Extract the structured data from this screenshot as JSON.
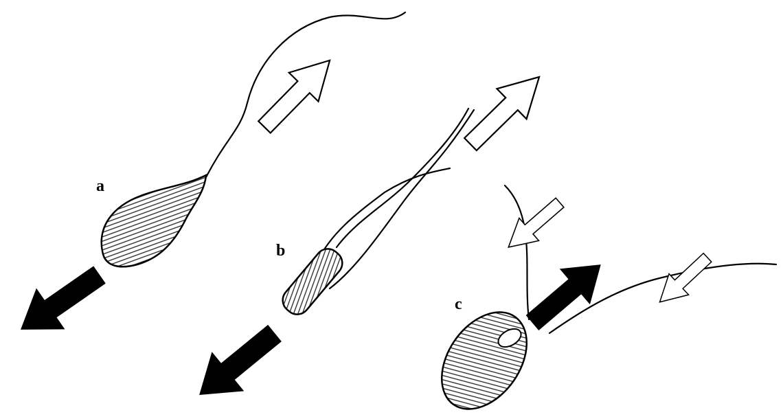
{
  "labels": {
    "a": "a",
    "b": "b",
    "c": "c"
  }
}
